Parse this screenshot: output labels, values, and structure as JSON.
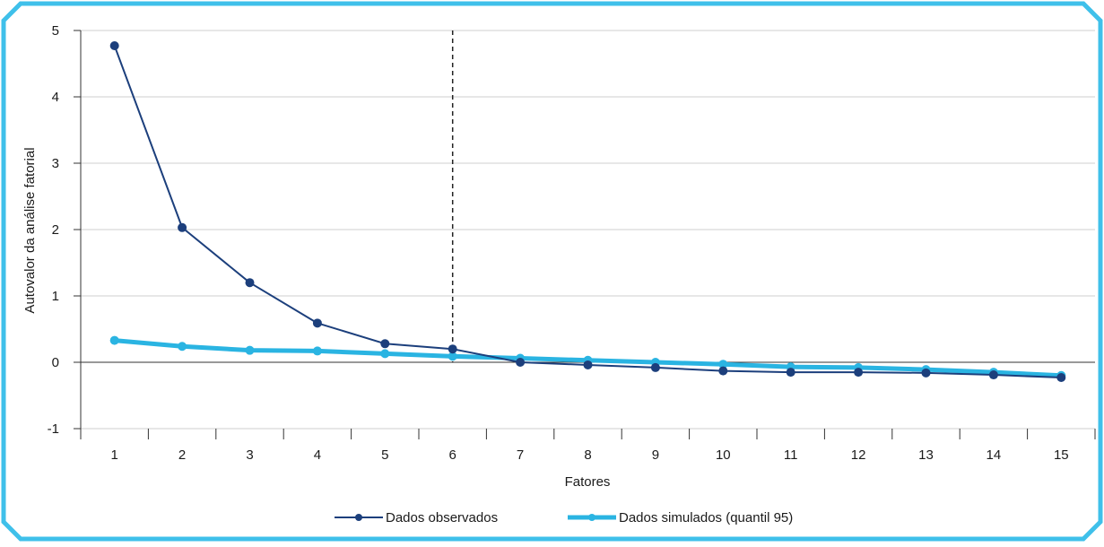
{
  "chart_data": {
    "type": "line",
    "title": "",
    "xlabel": "Fatores",
    "ylabel": "Autovalor da análise fatorial",
    "x": [
      1,
      2,
      3,
      4,
      5,
      6,
      7,
      8,
      9,
      10,
      11,
      12,
      13,
      14,
      15
    ],
    "x_tick_labels": [
      "1",
      "2",
      "3",
      "4",
      "5",
      "6",
      "7",
      "8",
      "9",
      "10",
      "11",
      "12",
      "13",
      "14",
      "15"
    ],
    "y_ticks": [
      -1,
      0,
      1,
      2,
      3,
      4,
      5
    ],
    "y_tick_labels": [
      "-1",
      "0",
      "1",
      "2",
      "3",
      "4",
      "5"
    ],
    "ylim": [
      -1,
      5
    ],
    "grid": "horizontal",
    "reference_line_x": 6,
    "legend_position": "bottom-center",
    "series": [
      {
        "name": "Dados observados",
        "color": "#1c3f7c",
        "values": [
          4.77,
          2.03,
          1.2,
          0.59,
          0.28,
          0.2,
          0.0,
          -0.04,
          -0.08,
          -0.13,
          -0.15,
          -0.15,
          -0.16,
          -0.19,
          -0.23
        ]
      },
      {
        "name": "Dados simulados (quantil 95)",
        "color": "#2ab4e2",
        "values": [
          0.33,
          0.24,
          0.18,
          0.17,
          0.13,
          0.09,
          0.06,
          0.03,
          0.0,
          -0.03,
          -0.07,
          -0.08,
          -0.11,
          -0.15,
          -0.2
        ]
      }
    ]
  }
}
